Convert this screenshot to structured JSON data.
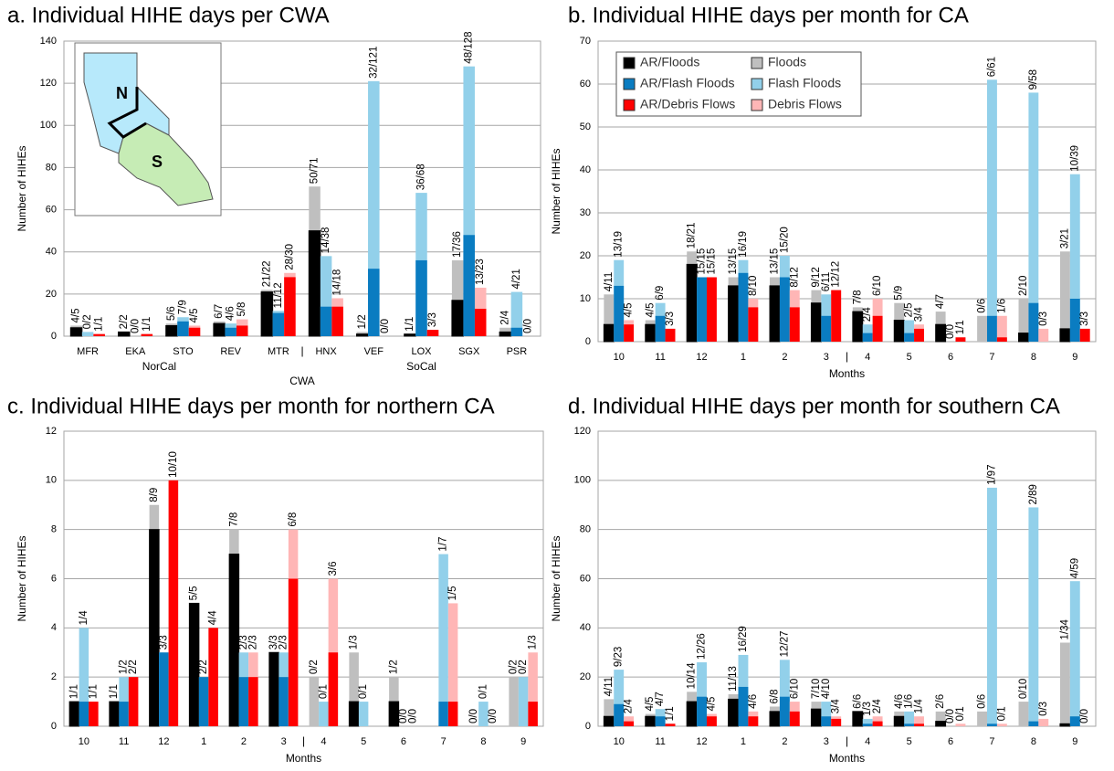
{
  "chart_data": [
    {
      "type": "bar",
      "title": "a. Individual HIHE days per CWA",
      "ylabel": "Number of HIHEs",
      "xlabel": "CWA",
      "group_labels": [
        "NorCal",
        "SoCal"
      ],
      "separator": "|",
      "inset_labels": [
        "N",
        "S"
      ],
      "categories": [
        "MFR",
        "EKA",
        "STO",
        "REV",
        "MTR",
        "HNX",
        "VEF",
        "LOX",
        "SGX",
        "PSR"
      ],
      "ylim": [
        0,
        140
      ],
      "yticks": [
        0,
        20,
        40,
        60,
        80,
        100,
        120,
        140
      ],
      "grid": true,
      "legend": false,
      "series": [
        {
          "name": "AR/Floods",
          "color": "#000000",
          "values": [
            4,
            2,
            5,
            6,
            21,
            50,
            1,
            1,
            17,
            2
          ]
        },
        {
          "name": "Floods",
          "color": "#bfbfbf",
          "values": [
            5,
            2,
            6,
            7,
            22,
            71,
            2,
            1,
            36,
            4
          ],
          "value_labels": [
            "4/5",
            "2/2",
            "5/6",
            "6/7",
            "21/22",
            "50/71",
            "1/2",
            "1/1",
            "17/36",
            "2/4"
          ]
        },
        {
          "name": "AR/Flash Floods",
          "color": "#0a7cc1",
          "values": [
            0,
            0,
            7,
            4,
            11,
            14,
            32,
            36,
            48,
            4
          ]
        },
        {
          "name": "Flash Floods",
          "color": "#92d0ea",
          "values": [
            2,
            0,
            9,
            6,
            12,
            38,
            121,
            68,
            128,
            21
          ],
          "value_labels": [
            "0/2",
            "0/0",
            "7/9",
            "4/6",
            "11/12",
            "14/38",
            "32/121",
            "36/68",
            "48/128",
            "4/21"
          ]
        },
        {
          "name": "AR/Debris Flows",
          "color": "#ff0000",
          "values": [
            1,
            1,
            4,
            5,
            28,
            14,
            0,
            3,
            13,
            0
          ]
        },
        {
          "name": "Debris Flows",
          "color": "#ffb6b6",
          "values": [
            1,
            1,
            5,
            8,
            30,
            18,
            0,
            3,
            23,
            0
          ],
          "value_labels": [
            "1/1",
            "1/1",
            "4/5",
            "5/8",
            "28/30",
            "14/18",
            "0/0",
            "3/3",
            "13/23",
            "0/0"
          ]
        }
      ]
    },
    {
      "type": "bar",
      "title": "b. Individual HIHE days per month for CA",
      "ylabel": "Number of HIHEs",
      "xlabel": "Months",
      "separator": "|",
      "categories": [
        "10",
        "11",
        "12",
        "1",
        "2",
        "3",
        "4",
        "5",
        "6",
        "7",
        "8",
        "9"
      ],
      "ylim": [
        0,
        70
      ],
      "yticks": [
        0,
        10,
        20,
        30,
        40,
        50,
        60,
        70
      ],
      "grid": true,
      "legend": true,
      "series": [
        {
          "name": "AR/Floods",
          "color": "#000000",
          "values": [
            4,
            4,
            18,
            13,
            13,
            9,
            7,
            5,
            4,
            0,
            2,
            3
          ]
        },
        {
          "name": "Floods",
          "color": "#bfbfbf",
          "values": [
            11,
            5,
            21,
            15,
            15,
            12,
            8,
            9,
            7,
            6,
            10,
            21
          ],
          "value_labels": [
            "4/11",
            "4/5",
            "18/21",
            "13/15",
            "13/15",
            "9/12",
            "7/8",
            "5/9",
            "4/7",
            "0/6",
            "2/10",
            "3/21"
          ]
        },
        {
          "name": "AR/Flash Floods",
          "color": "#0a7cc1",
          "values": [
            13,
            6,
            15,
            16,
            15,
            6,
            2,
            2,
            0,
            6,
            9,
            10
          ]
        },
        {
          "name": "Flash Floods",
          "color": "#92d0ea",
          "values": [
            19,
            9,
            15,
            19,
            20,
            11,
            4,
            5,
            0,
            61,
            58,
            39
          ],
          "value_labels": [
            "13/19",
            "6/9",
            "15/15",
            "16/19",
            "15/20",
            "6/11",
            "2/4",
            "2/5",
            "0/0",
            "6/61",
            "9/58",
            "10/39"
          ]
        },
        {
          "name": "AR/Debris Flows",
          "color": "#ff0000",
          "values": [
            4,
            3,
            15,
            8,
            8,
            12,
            6,
            3,
            1,
            1,
            0,
            3
          ]
        },
        {
          "name": "Debris Flows",
          "color": "#ffb6b6",
          "values": [
            5,
            3,
            15,
            10,
            12,
            12,
            10,
            4,
            1,
            6,
            3,
            3
          ],
          "value_labels": [
            "4/5",
            "3/3",
            "15/15",
            "8/10",
            "8/12",
            "12/12",
            "6/10",
            "3/4",
            "1/1",
            "1/6",
            "0/3",
            "3/3"
          ]
        }
      ]
    },
    {
      "type": "bar",
      "title": "c. Individual HIHE days per month for northern CA",
      "ylabel": "Number of HIHEs",
      "xlabel": "Months",
      "separator": "|",
      "categories": [
        "10",
        "11",
        "12",
        "1",
        "2",
        "3",
        "4",
        "5",
        "6",
        "7",
        "8",
        "9"
      ],
      "ylim": [
        0,
        12
      ],
      "yticks": [
        0,
        2,
        4,
        6,
        8,
        10,
        12
      ],
      "grid": true,
      "legend": false,
      "series": [
        {
          "name": "AR/Floods",
          "color": "#000000",
          "values": [
            1,
            1,
            8,
            5,
            7,
            3,
            0,
            1,
            1,
            null,
            0,
            0
          ]
        },
        {
          "name": "Floods",
          "color": "#bfbfbf",
          "values": [
            1,
            1,
            9,
            5,
            8,
            3,
            2,
            3,
            2,
            null,
            0,
            2
          ],
          "value_labels": [
            "1/1",
            "1/1",
            "8/9",
            "5/5",
            "7/8",
            "3/3",
            "0/2",
            "1/3",
            "1/2",
            null,
            "0/0",
            "0/2"
          ]
        },
        {
          "name": "AR/Flash Floods",
          "color": "#0a7cc1",
          "values": [
            1,
            1,
            3,
            2,
            2,
            2,
            0,
            0,
            0,
            1,
            0,
            0
          ]
        },
        {
          "name": "Flash Floods",
          "color": "#92d0ea",
          "values": [
            4,
            2,
            3,
            2,
            3,
            3,
            1,
            1,
            0,
            7,
            1,
            2
          ],
          "value_labels": [
            "1/4",
            "1/2",
            "3/3",
            "2/2",
            "2/3",
            "2/3",
            "0/1",
            "0/1",
            "0/0",
            "1/7",
            "0/1",
            "0/2"
          ]
        },
        {
          "name": "AR/Debris Flows",
          "color": "#ff0000",
          "values": [
            1,
            2,
            10,
            4,
            2,
            6,
            3,
            null,
            0,
            1,
            0,
            1
          ]
        },
        {
          "name": "Debris Flows",
          "color": "#ffb6b6",
          "values": [
            1,
            2,
            10,
            4,
            3,
            8,
            6,
            null,
            0,
            5,
            0,
            3
          ],
          "value_labels": [
            "1/1",
            "2/2",
            "10/10",
            "4/4",
            "2/3",
            "6/8",
            "3/6",
            null,
            "0/0",
            "1/5",
            "0/0",
            "1/3"
          ]
        }
      ]
    },
    {
      "type": "bar",
      "title": "d. Individual HIHE days per month for southern CA",
      "ylabel": "Number of HIHEs",
      "xlabel": "Months",
      "separator": "|",
      "categories": [
        "10",
        "11",
        "12",
        "1",
        "2",
        "3",
        "4",
        "5",
        "6",
        "7",
        "8",
        "9"
      ],
      "ylim": [
        0,
        120
      ],
      "yticks": [
        0,
        20,
        40,
        60,
        80,
        100,
        120
      ],
      "grid": true,
      "legend": false,
      "series": [
        {
          "name": "AR/Floods",
          "color": "#000000",
          "values": [
            4,
            4,
            10,
            11,
            6,
            7,
            6,
            4,
            2,
            0,
            0,
            1
          ]
        },
        {
          "name": "Floods",
          "color": "#bfbfbf",
          "values": [
            11,
            5,
            14,
            13,
            8,
            10,
            6,
            6,
            6,
            6,
            10,
            34
          ],
          "value_labels": [
            "4/11",
            "4/5",
            "10/14",
            "11/13",
            "6/8",
            "7/10",
            "6/6",
            "4/6",
            "2/6",
            "0/6",
            "0/10",
            "1/34"
          ]
        },
        {
          "name": "AR/Flash Floods",
          "color": "#0a7cc1",
          "values": [
            9,
            4,
            12,
            16,
            12,
            4,
            1,
            1,
            0,
            1,
            2,
            4
          ]
        },
        {
          "name": "Flash Floods",
          "color": "#92d0ea",
          "values": [
            23,
            7,
            26,
            29,
            27,
            10,
            3,
            6,
            0,
            97,
            89,
            59
          ],
          "value_labels": [
            "9/23",
            "4/7",
            "12/26",
            "16/29",
            "12/27",
            "4/10",
            "1/3",
            "1/6",
            "0/0",
            "1/97",
            "2/89",
            "4/59"
          ]
        },
        {
          "name": "AR/Debris Flows",
          "color": "#ff0000",
          "values": [
            2,
            1,
            4,
            4,
            6,
            3,
            2,
            1,
            0,
            0,
            0,
            0
          ]
        },
        {
          "name": "Debris Flows",
          "color": "#ffb6b6",
          "values": [
            4,
            1,
            5,
            6,
            10,
            4,
            4,
            4,
            1,
            1,
            3,
            0
          ],
          "value_labels": [
            "2/4",
            "1/1",
            "4/5",
            "4/6",
            "6/10",
            "3/4",
            "2/4",
            "1/4",
            "0/1",
            "0/1",
            "0/3",
            "0/0"
          ]
        }
      ]
    }
  ]
}
